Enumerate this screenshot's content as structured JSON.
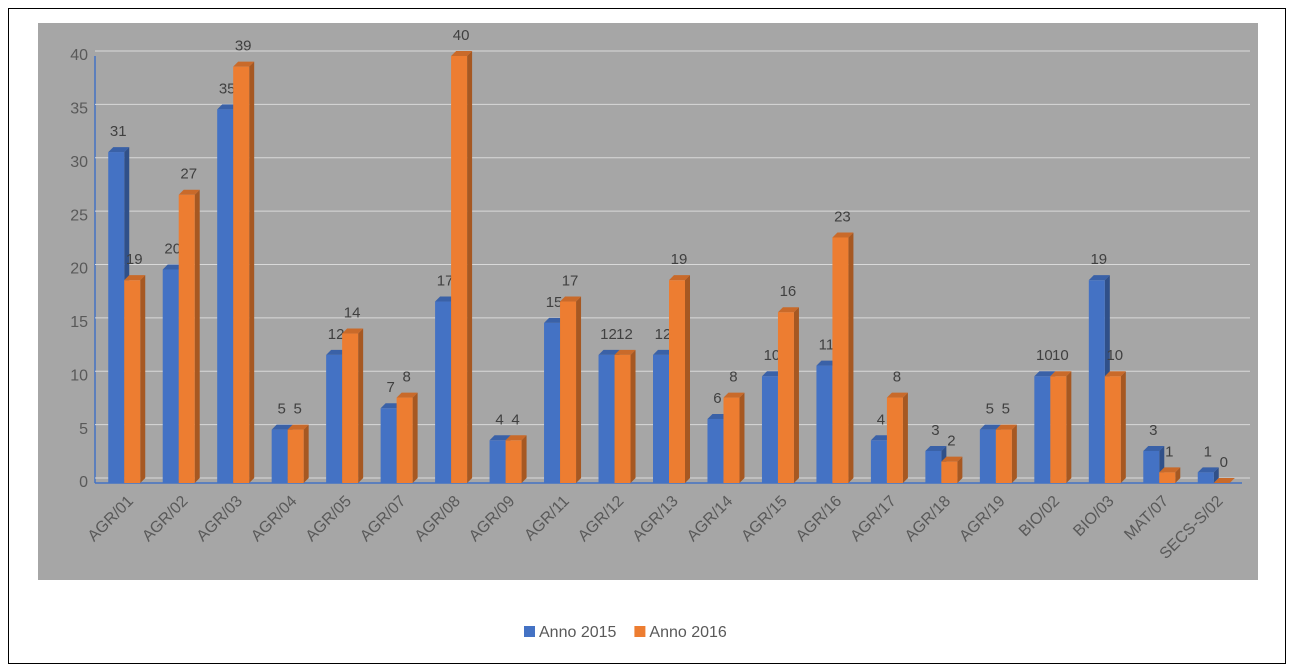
{
  "chart_data": {
    "type": "bar3d",
    "categories": [
      "AGR/01",
      "AGR/02",
      "AGR/03",
      "AGR/04",
      "AGR/05",
      "AGR/07",
      "AGR/08",
      "AGR/09",
      "AGR/11",
      "AGR/12",
      "AGR/13",
      "AGR/14",
      "AGR/15",
      "AGR/16",
      "AGR/17",
      "AGR/18",
      "AGR/19",
      "BIO/02",
      "BIO/03",
      "MAT/07",
      "SECS-S/02"
    ],
    "series": [
      {
        "name": "Anno 2015",
        "color": "#4472c4",
        "values": [
          31,
          20,
          35,
          5,
          12,
          7,
          17,
          4,
          15,
          12,
          12,
          6,
          10,
          11,
          4,
          3,
          5,
          10,
          19,
          3,
          1
        ]
      },
      {
        "name": "Anno 2016",
        "color": "#ed7d31",
        "values": [
          19,
          27,
          39,
          5,
          14,
          8,
          40,
          4,
          17,
          12,
          19,
          8,
          16,
          23,
          8,
          2,
          5,
          10,
          10,
          1,
          0
        ]
      }
    ],
    "ylim": [
      0,
      40
    ],
    "yticks": [
      0,
      5,
      10,
      15,
      20,
      25,
      30,
      35,
      40
    ],
    "grid": true,
    "legend": "bottom"
  }
}
